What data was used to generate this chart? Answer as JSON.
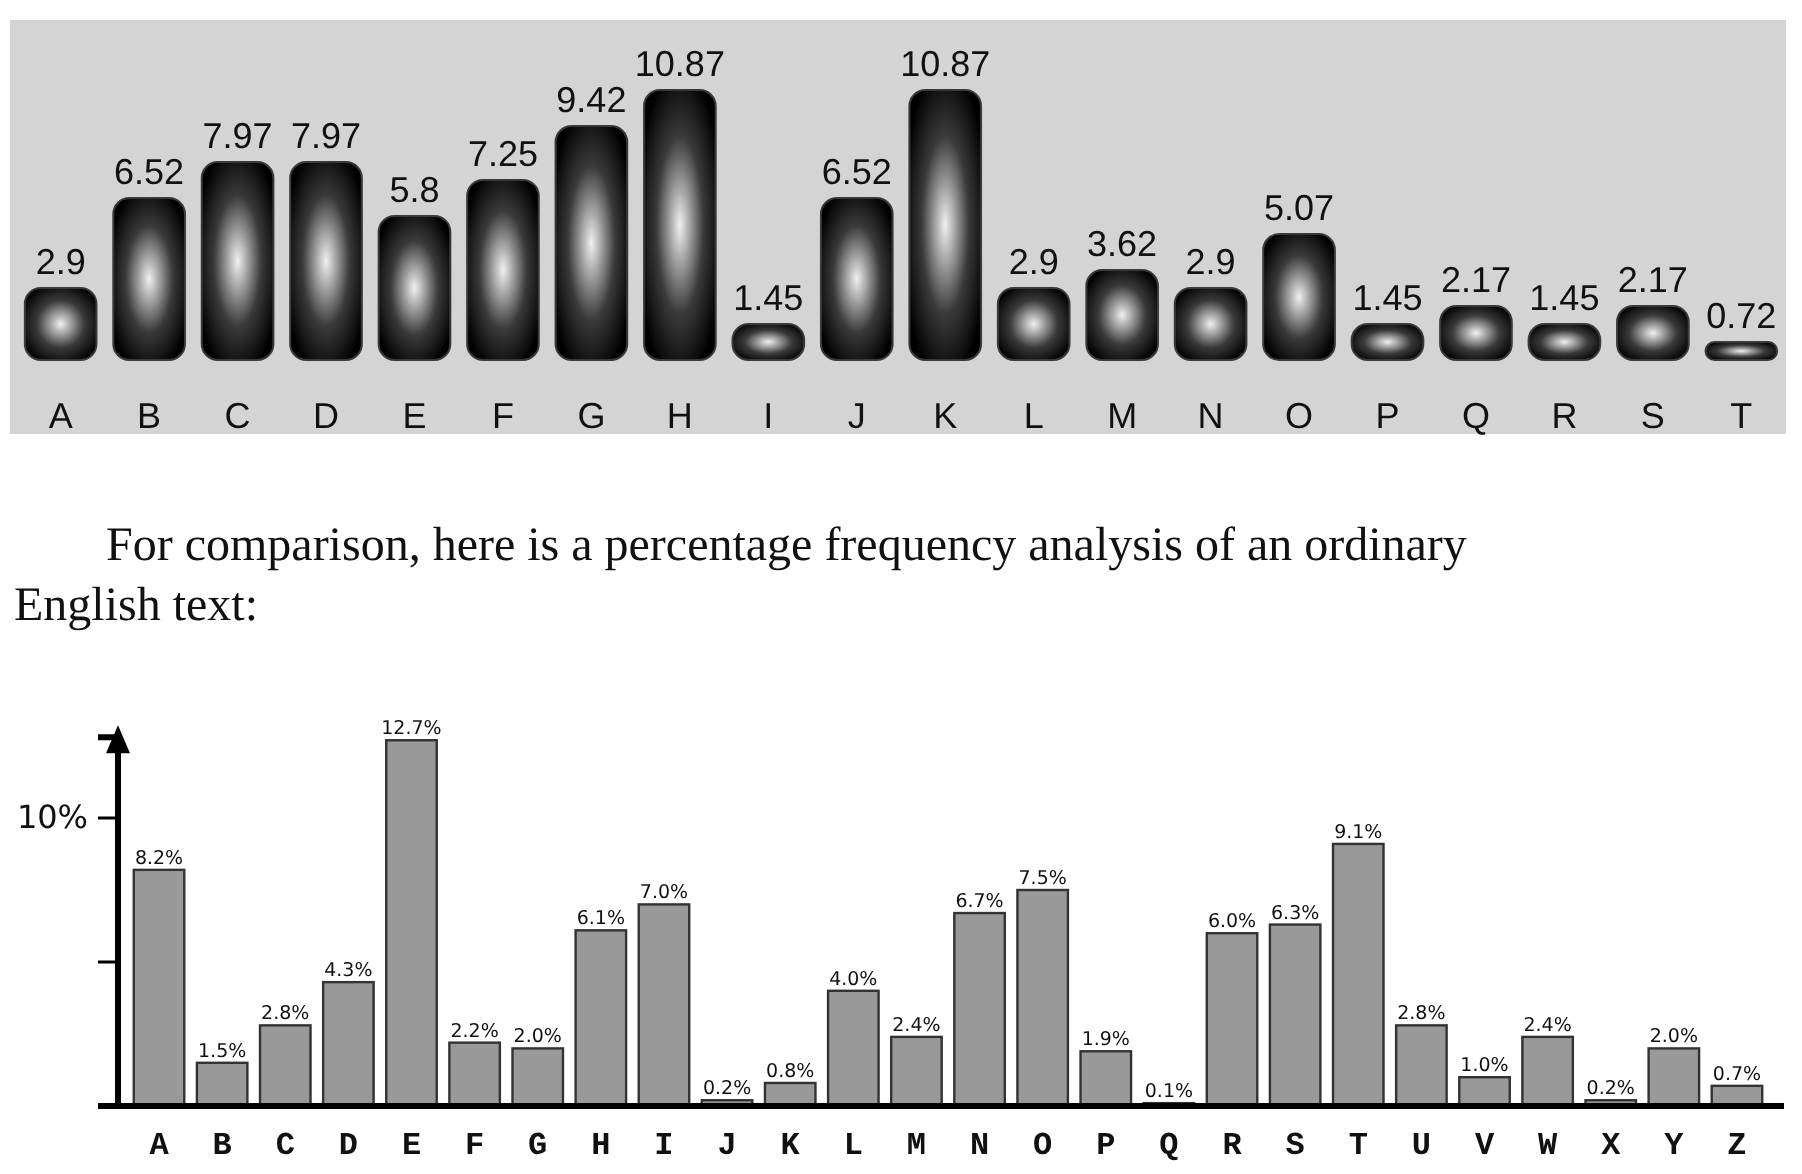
{
  "chart_data": [
    {
      "type": "bar",
      "categories": [
        "A",
        "B",
        "C",
        "D",
        "E",
        "F",
        "G",
        "H",
        "I",
        "J",
        "K",
        "L",
        "M",
        "N",
        "O",
        "P",
        "Q",
        "R",
        "S",
        "T"
      ],
      "values": [
        2.9,
        6.52,
        7.97,
        7.97,
        5.8,
        7.25,
        9.42,
        10.87,
        1.45,
        6.52,
        10.87,
        2.9,
        3.62,
        2.9,
        5.07,
        1.45,
        2.17,
        1.45,
        2.17,
        0.72
      ],
      "color": "#3a3a3a",
      "ylim": [
        0,
        11
      ],
      "data_labels": true
    },
    {
      "type": "bar",
      "title": "For comparison, here is a percentage frequency analysis of an ordinary English text:",
      "categories": [
        "A",
        "B",
        "C",
        "D",
        "E",
        "F",
        "G",
        "H",
        "I",
        "J",
        "K",
        "L",
        "M",
        "N",
        "O",
        "P",
        "Q",
        "R",
        "S",
        "T",
        "U",
        "V",
        "W",
        "X",
        "Y",
        "Z"
      ],
      "values": [
        8.2,
        1.5,
        2.8,
        4.3,
        12.7,
        2.2,
        2.0,
        6.1,
        7.0,
        0.2,
        0.8,
        4.0,
        2.4,
        6.7,
        7.5,
        1.9,
        0.1,
        6.0,
        6.3,
        9.1,
        2.8,
        1.0,
        2.4,
        0.2,
        2.0,
        0.7
      ],
      "value_labels": [
        "8.2%",
        "1.5%",
        "2.8%",
        "4.3%",
        "12.7%",
        "2.2%",
        "2.0%",
        "6.1%",
        "7.0%",
        "0.2%",
        "0.8%",
        "4.0%",
        "2.4%",
        "6.7%",
        "7.5%",
        "1.9%",
        "0.1%",
        "6.0%",
        "6.3%",
        "9.1%",
        "2.8%",
        "1.0%",
        "2.4%",
        "0.2%",
        "2.0%",
        "0.7%"
      ],
      "color": "#999999",
      "ylim": [
        0,
        12.8
      ],
      "yticks": [
        {
          "value": 5,
          "label": null
        },
        {
          "value": 10,
          "label": "10%"
        }
      ]
    }
  ]
}
